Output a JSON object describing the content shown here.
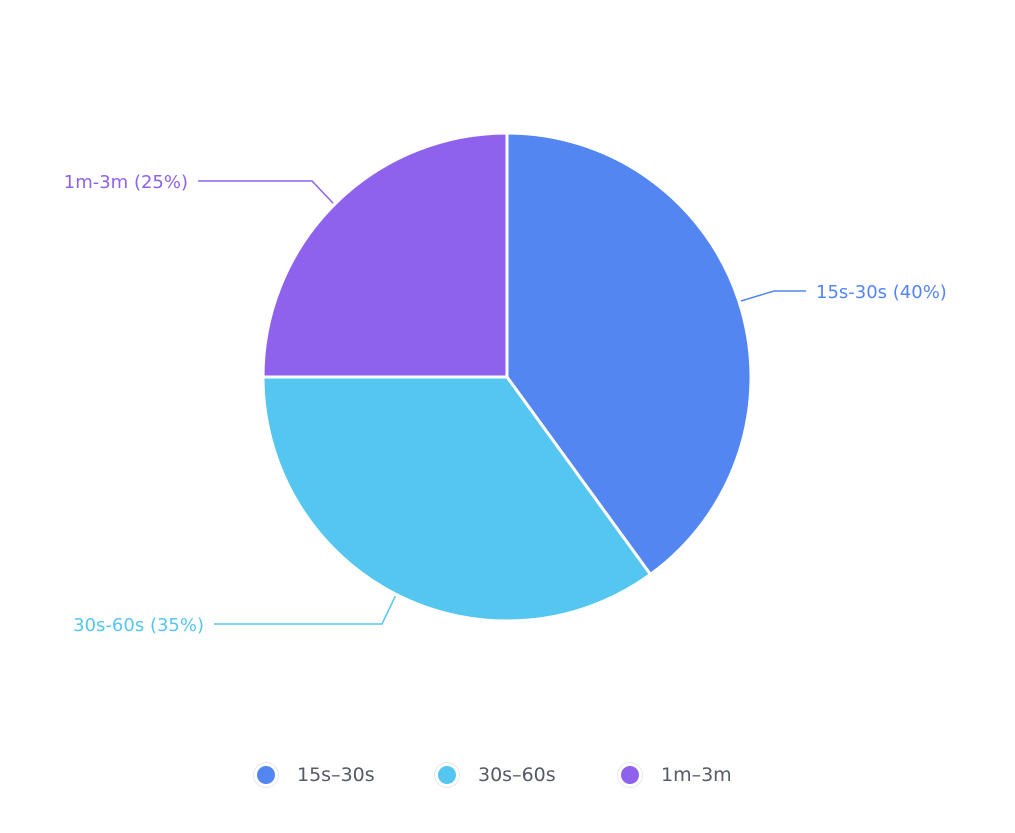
{
  "chart_data": {
    "type": "pie",
    "slices": [
      {
        "label": "15s-30s",
        "value": 40,
        "display": "15s-30s (40%)",
        "color": "#5386F1"
      },
      {
        "label": "30s-60s",
        "value": 35,
        "display": "30s-60s (35%)",
        "color": "#55C6F0"
      },
      {
        "label": "1m-3m",
        "value": 25,
        "display": "1m-3m (25%)",
        "color": "#8F62ED"
      }
    ],
    "legend": {
      "position": "bottom",
      "items": [
        {
          "label": "15s–30s",
          "color": "#5386F1"
        },
        {
          "label": "30s–60s",
          "color": "#55C6F0"
        },
        {
          "label": "1m–3m",
          "color": "#8F62ED"
        }
      ]
    }
  }
}
